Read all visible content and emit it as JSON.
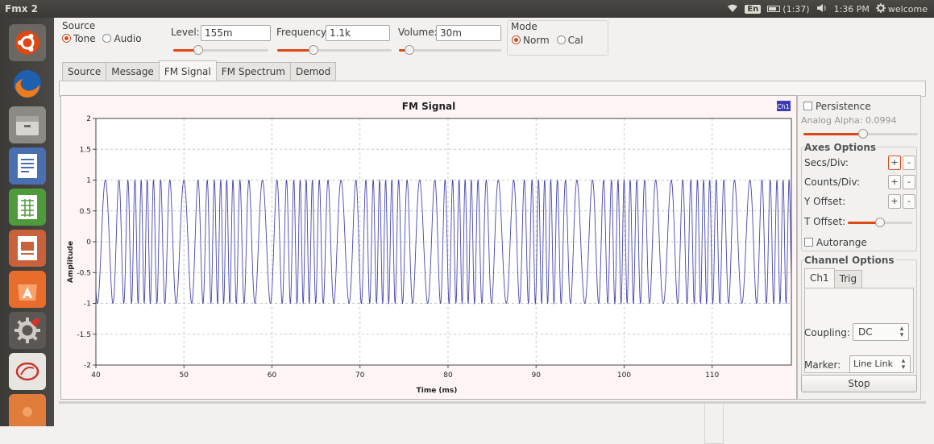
{
  "window": {
    "title": "Fmx 2",
    "tray": {
      "keyboard": "En",
      "battery": "(1:37)",
      "time": "1:36 PM",
      "user": "welcome"
    }
  },
  "launcher": {
    "icons": [
      "ubuntu-dash-icon",
      "firefox-icon",
      "files-icon",
      "writer-icon",
      "calc-icon",
      "impress-icon",
      "software-center-icon",
      "settings-icon",
      "fedora-icon",
      "ubuntu-one-icon"
    ]
  },
  "controls": {
    "source": {
      "label": "Source",
      "options": [
        "Tone",
        "Audio"
      ],
      "selected": "Tone"
    },
    "level": {
      "label": "Level:",
      "value": "155m",
      "slider_fraction": 0.24
    },
    "frequency": {
      "label": "Frequency:",
      "value": "1.1k",
      "slider_fraction": 0.3
    },
    "volume": {
      "label": "Volume:",
      "value": "30m",
      "slider_fraction": 0.06
    },
    "mode": {
      "label": "Mode",
      "options": [
        "Norm",
        "Cal"
      ],
      "selected": "Norm"
    }
  },
  "tabs": [
    {
      "label": "Source",
      "active": false
    },
    {
      "label": "Message",
      "active": false
    },
    {
      "label": "FM Signal",
      "active": true
    },
    {
      "label": "FM Spectrum",
      "active": false
    },
    {
      "label": "Demod",
      "active": false
    }
  ],
  "side": {
    "persistence": "Persistence",
    "alpha": "Analog Alpha: 0.0994",
    "alpha_fraction": 0.52,
    "axes_title": "Axes Options",
    "secs": "Secs/Div:",
    "counts": "Counts/Div:",
    "yoffset": "Y Offset:",
    "toffset": "T Offset:",
    "toffset_fraction": 0.5,
    "plus": "+",
    "minus": "-",
    "autorange": "Autorange",
    "channel_title": "Channel Options",
    "ch_tabs": [
      "Ch1",
      "Trig"
    ],
    "coupling_label": "Coupling:",
    "coupling": "DC",
    "marker_label": "Marker:",
    "marker": "Line Link",
    "stop": "Stop"
  },
  "chart_data": {
    "type": "line",
    "title": "FM Signal",
    "xlabel": "Time (ms)",
    "ylabel": "Amplitude",
    "xlim": [
      40,
      119
    ],
    "ylim": [
      -2,
      2
    ],
    "xticks": [
      40,
      50,
      60,
      70,
      80,
      90,
      100,
      110
    ],
    "yticks": [
      2,
      1.5,
      1,
      0.5,
      0,
      -0.5,
      -1,
      -1.5,
      -2
    ],
    "legend": "Ch1",
    "grid": true,
    "carrier_khz": 1.0,
    "series": [
      {
        "name": "Ch1",
        "color": "#4545b0",
        "amplitude": 1.0,
        "x_start": 40,
        "x_end": 119
      }
    ]
  }
}
